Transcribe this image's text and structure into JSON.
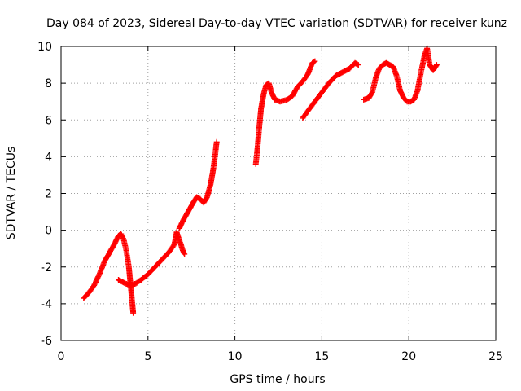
{
  "chart_data": {
    "type": "scatter",
    "title": "Day 084 of 2023, Sidereal Day-to-day VTEC variation (SDTVAR) for receiver kunz",
    "xlabel": "GPS time / hours",
    "ylabel": "SDTVAR / TECUs",
    "xlim": [
      0,
      25
    ],
    "ylim": [
      -6,
      10
    ],
    "x_ticks": [
      "0",
      "5",
      "10",
      "15",
      "20",
      "25"
    ],
    "y_ticks": [
      "-6",
      "-4",
      "-2",
      "0",
      "2",
      "4",
      "6",
      "8",
      "10"
    ],
    "grid": true,
    "marker": "+",
    "color": "#ff0000",
    "segments": [
      [
        [
          1.3,
          -3.7
        ],
        [
          1.6,
          -3.4
        ],
        [
          1.9,
          -3.0
        ],
        [
          2.2,
          -2.4
        ],
        [
          2.5,
          -1.7
        ],
        [
          2.8,
          -1.2
        ],
        [
          3.1,
          -0.7
        ],
        [
          3.3,
          -0.3
        ],
        [
          3.45,
          -0.2
        ],
        [
          3.6,
          -0.5
        ],
        [
          3.75,
          -1.1
        ],
        [
          3.9,
          -2.0
        ],
        [
          4.0,
          -3.0
        ],
        [
          4.1,
          -4.0
        ],
        [
          4.15,
          -4.5
        ]
      ],
      [
        [
          3.3,
          -2.7
        ],
        [
          3.7,
          -2.9
        ],
        [
          4.0,
          -3.0
        ],
        [
          4.3,
          -2.9
        ],
        [
          4.6,
          -2.7
        ],
        [
          5.0,
          -2.4
        ],
        [
          5.4,
          -2.0
        ],
        [
          5.8,
          -1.6
        ],
        [
          6.2,
          -1.2
        ],
        [
          6.5,
          -0.8
        ],
        [
          6.6,
          -0.4
        ],
        [
          6.65,
          -0.1
        ],
        [
          6.75,
          -0.4
        ],
        [
          6.9,
          -0.8
        ],
        [
          7.0,
          -1.1
        ],
        [
          7.1,
          -1.3
        ]
      ],
      [
        [
          6.8,
          0.1
        ],
        [
          7.0,
          0.5
        ],
        [
          7.3,
          1.0
        ],
        [
          7.6,
          1.5
        ],
        [
          7.8,
          1.8
        ],
        [
          8.0,
          1.7
        ],
        [
          8.2,
          1.5
        ],
        [
          8.4,
          1.8
        ],
        [
          8.6,
          2.5
        ],
        [
          8.75,
          3.3
        ],
        [
          8.85,
          4.0
        ],
        [
          8.95,
          4.8
        ]
      ],
      [
        [
          11.2,
          3.6
        ],
        [
          11.3,
          4.5
        ],
        [
          11.4,
          5.6
        ],
        [
          11.5,
          6.6
        ],
        [
          11.65,
          7.4
        ],
        [
          11.8,
          7.9
        ],
        [
          11.95,
          8.0
        ],
        [
          12.1,
          7.5
        ],
        [
          12.3,
          7.1
        ],
        [
          12.6,
          7.0
        ],
        [
          13.0,
          7.1
        ],
        [
          13.3,
          7.3
        ],
        [
          13.6,
          7.8
        ],
        [
          13.9,
          8.1
        ],
        [
          14.2,
          8.5
        ],
        [
          14.45,
          9.1
        ],
        [
          14.6,
          9.2
        ]
      ],
      [
        [
          13.9,
          6.1
        ],
        [
          14.2,
          6.5
        ],
        [
          14.6,
          7.0
        ],
        [
          15.0,
          7.5
        ],
        [
          15.4,
          8.0
        ],
        [
          15.8,
          8.4
        ],
        [
          16.2,
          8.6
        ],
        [
          16.6,
          8.8
        ],
        [
          16.9,
          9.1
        ],
        [
          17.1,
          9.0
        ]
      ],
      [
        [
          17.4,
          7.1
        ],
        [
          17.7,
          7.2
        ],
        [
          17.9,
          7.5
        ],
        [
          18.1,
          8.3
        ],
        [
          18.3,
          8.8
        ],
        [
          18.5,
          9.0
        ],
        [
          18.7,
          9.1
        ],
        [
          18.9,
          9.0
        ],
        [
          19.1,
          8.9
        ],
        [
          19.3,
          8.4
        ],
        [
          19.5,
          7.6
        ],
        [
          19.7,
          7.2
        ],
        [
          19.9,
          7.0
        ],
        [
          20.1,
          7.0
        ],
        [
          20.3,
          7.1
        ],
        [
          20.5,
          7.6
        ],
        [
          20.7,
          8.6
        ],
        [
          20.9,
          9.5
        ],
        [
          21.05,
          9.9
        ],
        [
          21.2,
          9.0
        ],
        [
          21.4,
          8.7
        ],
        [
          21.6,
          9.0
        ]
      ]
    ]
  }
}
